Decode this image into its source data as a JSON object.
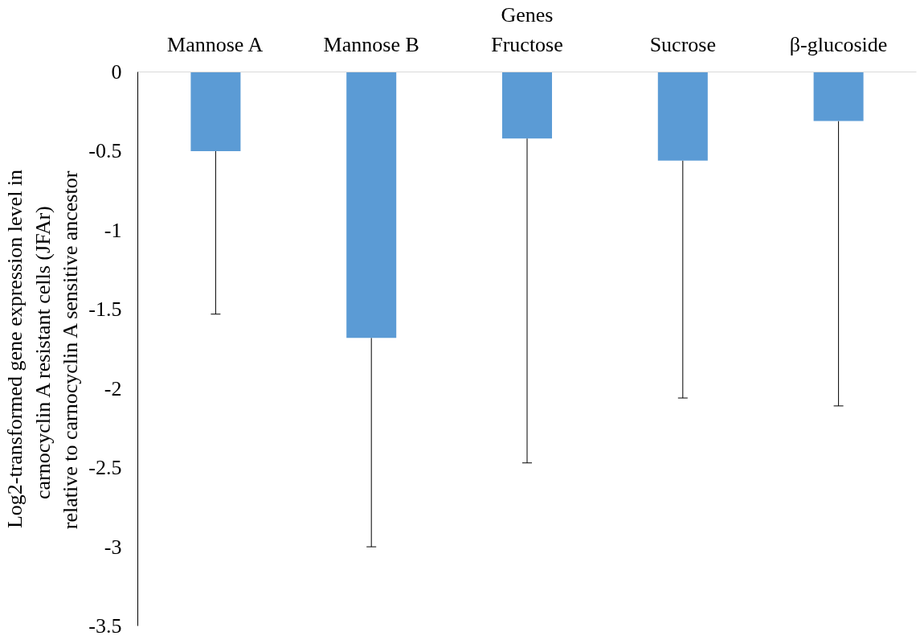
{
  "chart_data": {
    "type": "bar",
    "xlabel": "Genes",
    "ylabel": "Log2-transformed gene expression level in\ncarnocyclin A resistant cells  (JFAr)\nrelative to carnocyclin A sensitive ancestor",
    "categories": [
      "Mannose A",
      "Mannose B",
      "Fructose",
      "Sucrose",
      "β-glucoside"
    ],
    "values": [
      -0.5,
      -1.68,
      -0.42,
      -0.56,
      -0.31
    ],
    "errors": [
      [
        -1.53,
        -0.5
      ],
      [
        -3.0,
        -1.68
      ],
      [
        -2.47,
        -0.42
      ],
      [
        -2.06,
        -0.56
      ],
      [
        -2.11,
        -0.31
      ]
    ],
    "color": "#5b9bd5",
    "ylim": [
      -3.5,
      0
    ],
    "yticks": [
      {
        "value": 0,
        "label": "0"
      },
      {
        "value": -0.5,
        "label": "-0.5"
      },
      {
        "value": -1,
        "label": "-1"
      },
      {
        "value": -1.5,
        "label": "-1.5"
      },
      {
        "value": -2,
        "label": "-2"
      },
      {
        "value": -2.5,
        "label": "-2.5"
      },
      {
        "value": -3,
        "label": "-3"
      },
      {
        "value": -3.5,
        "label": "-3.5"
      }
    ],
    "grid": false
  }
}
